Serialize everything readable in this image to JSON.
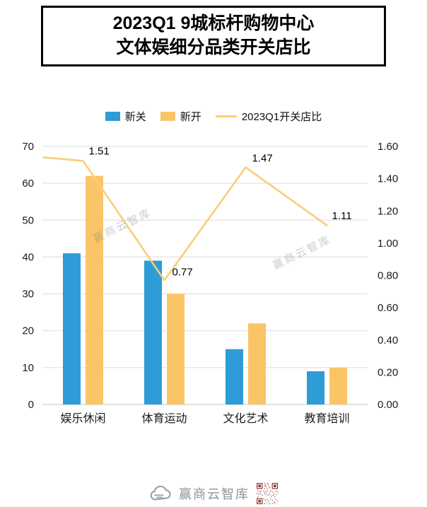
{
  "title": {
    "line1": "2023Q1 9城标杆购物中心",
    "line2": "文体娱细分品类开关店比"
  },
  "chart_data": {
    "type": "bar+line combo",
    "categories": [
      "娱乐休闲",
      "体育运动",
      "文化艺术",
      "教育培训"
    ],
    "series": [
      {
        "name": "新关",
        "type": "bar",
        "axis": "left",
        "color": "#2E9CD6",
        "values": [
          41,
          39,
          15,
          9
        ]
      },
      {
        "name": "新开",
        "type": "bar",
        "axis": "left",
        "color": "#F9C567",
        "values": [
          62,
          30,
          22,
          10
        ]
      },
      {
        "name": "2023Q1开关店比",
        "type": "line",
        "axis": "right",
        "color": "#FACD7C",
        "values": [
          1.51,
          0.77,
          1.47,
          1.11
        ],
        "labels": [
          "1.51",
          "0.77",
          "1.47",
          "1.11"
        ]
      }
    ],
    "left_axis": {
      "min": 0,
      "max": 70,
      "step": 10
    },
    "right_axis": {
      "min": 0,
      "max": 1.6,
      "step": 0.2,
      "decimals": 2
    },
    "grid": true,
    "legend_position": "top"
  },
  "watermark": {
    "text": "赢商云智库"
  },
  "footer": {
    "brand": "赢商云智库"
  }
}
